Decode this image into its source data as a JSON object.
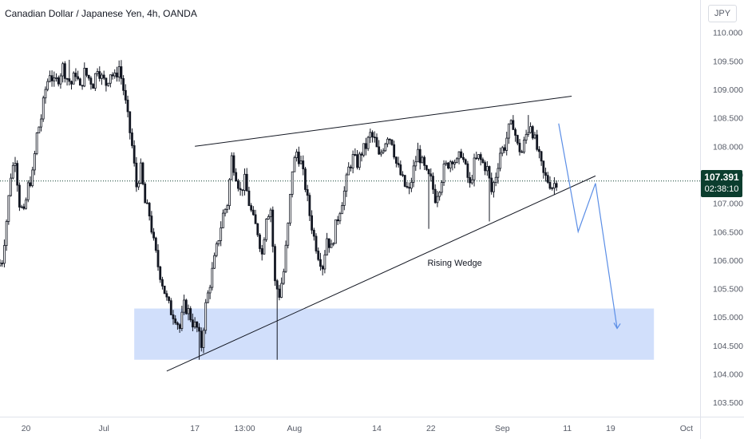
{
  "header": {
    "title": "Canadian Dollar / Japanese Yen, 4h, OANDA",
    "currency": "JPY"
  },
  "price_tag": {
    "price": "107.391",
    "countdown": "02:38:10"
  },
  "colors": {
    "candle": "#131722",
    "zone_fill": "#cfddfb",
    "projection": "#5b8ee6",
    "price_tag": "#0b3d2e",
    "axis_text": "#555a66"
  },
  "chart_data": {
    "type": "candlestick",
    "symbol": "CADJPY",
    "interval": "4h",
    "ylim": [
      103.25,
      110.15
    ],
    "yticks": [
      103.5,
      104.0,
      104.5,
      105.0,
      105.5,
      106.0,
      106.5,
      107.0,
      107.5,
      108.0,
      108.5,
      109.0,
      109.5,
      110.0
    ],
    "ytick_labels": [
      "103.500",
      "104.000",
      "104.500",
      "105.000",
      "105.500",
      "106.000",
      "106.500",
      "107.000",
      "107.500",
      "108.000",
      "108.500",
      "109.000",
      "109.500",
      "110.000"
    ],
    "xlim": [
      0,
      160
    ],
    "xticks": [
      {
        "x": 6,
        "label": "20"
      },
      {
        "x": 24,
        "label": "Jul"
      },
      {
        "x": 45,
        "label": "17"
      },
      {
        "x": 56.5,
        "label": "13:00"
      },
      {
        "x": 68,
        "label": "Aug"
      },
      {
        "x": 87,
        "label": "14"
      },
      {
        "x": 99.5,
        "label": "22"
      },
      {
        "x": 116,
        "label": "Sep"
      },
      {
        "x": 131,
        "label": "11"
      },
      {
        "x": 141,
        "label": "19"
      },
      {
        "x": 158.5,
        "label": "Oct"
      }
    ],
    "price_path": [
      [
        0,
        105.9
      ],
      [
        1,
        106.0
      ],
      [
        2,
        106.7
      ],
      [
        3,
        107.5
      ],
      [
        4,
        107.8
      ],
      [
        5,
        107.0
      ],
      [
        6,
        106.8
      ],
      [
        7,
        107.3
      ],
      [
        8,
        107.5
      ],
      [
        9,
        108.2
      ],
      [
        10,
        108.5
      ],
      [
        11,
        109.0
      ],
      [
        12,
        109.3
      ],
      [
        13,
        109.1
      ],
      [
        14,
        109.2
      ],
      [
        15,
        109.4
      ],
      [
        16,
        109.2
      ],
      [
        17,
        109.1
      ],
      [
        18,
        109.3
      ],
      [
        19,
        109.0
      ],
      [
        20,
        109.3
      ],
      [
        21,
        109.2
      ],
      [
        22,
        109.1
      ],
      [
        23,
        109.4
      ],
      [
        24,
        109.2
      ],
      [
        25,
        109.1
      ],
      [
        26,
        109.3
      ],
      [
        27,
        109.2
      ],
      [
        28,
        109.4
      ],
      [
        29,
        109.0
      ],
      [
        30,
        108.5
      ],
      [
        31,
        108.0
      ],
      [
        32,
        107.3
      ],
      [
        33,
        107.6
      ],
      [
        34,
        107.0
      ],
      [
        35,
        106.8
      ],
      [
        36,
        106.3
      ],
      [
        37,
        105.9
      ],
      [
        38,
        105.6
      ],
      [
        39,
        105.3
      ],
      [
        40,
        105.1
      ],
      [
        41,
        105.0
      ],
      [
        42,
        104.8
      ],
      [
        43,
        105.2
      ],
      [
        44,
        105.1
      ],
      [
        45,
        104.9
      ],
      [
        46,
        104.8
      ],
      [
        47,
        104.5
      ],
      [
        48,
        105.2
      ],
      [
        49,
        105.6
      ],
      [
        50,
        106.0
      ],
      [
        51,
        106.4
      ],
      [
        52,
        106.8
      ],
      [
        53,
        107.0
      ],
      [
        54,
        107.8
      ],
      [
        55,
        107.5
      ],
      [
        56,
        107.2
      ],
      [
        57,
        107.4
      ],
      [
        58,
        107.0
      ],
      [
        59,
        106.7
      ],
      [
        60,
        106.5
      ],
      [
        61,
        106.1
      ],
      [
        62,
        106.8
      ],
      [
        63,
        106.9
      ],
      [
        64,
        105.6
      ],
      [
        65,
        105.4
      ],
      [
        66,
        105.8
      ],
      [
        67,
        106.6
      ],
      [
        68,
        107.6
      ],
      [
        69,
        107.9
      ],
      [
        70,
        107.7
      ],
      [
        71,
        107.3
      ],
      [
        72,
        106.8
      ],
      [
        73,
        106.4
      ],
      [
        74,
        106.1
      ],
      [
        75,
        105.9
      ],
      [
        76,
        106.4
      ],
      [
        77,
        106.2
      ],
      [
        78,
        106.6
      ],
      [
        79,
        106.9
      ],
      [
        80,
        107.2
      ],
      [
        81,
        107.6
      ],
      [
        82,
        107.8
      ],
      [
        83,
        107.7
      ],
      [
        84,
        107.9
      ],
      [
        85,
        108.0
      ],
      [
        86,
        108.2
      ],
      [
        87,
        108.1
      ],
      [
        88,
        107.8
      ],
      [
        89,
        108.0
      ],
      [
        90,
        108.2
      ],
      [
        91,
        108.1
      ],
      [
        92,
        107.7
      ],
      [
        93,
        107.5
      ],
      [
        94,
        107.3
      ],
      [
        95,
        107.2
      ],
      [
        96,
        107.6
      ],
      [
        97,
        107.9
      ],
      [
        98,
        107.7
      ],
      [
        99,
        107.5
      ],
      [
        100,
        107.4
      ],
      [
        101,
        107.1
      ],
      [
        102,
        107.3
      ],
      [
        103,
        107.6
      ],
      [
        104,
        107.7
      ],
      [
        105,
        107.8
      ],
      [
        106,
        107.7
      ],
      [
        107,
        107.9
      ],
      [
        108,
        107.6
      ],
      [
        109,
        107.3
      ],
      [
        110,
        107.7
      ],
      [
        111,
        107.8
      ],
      [
        112,
        107.7
      ],
      [
        113,
        107.6
      ],
      [
        114,
        107.2
      ],
      [
        115,
        107.5
      ],
      [
        116,
        107.9
      ],
      [
        117,
        108.0
      ],
      [
        118,
        108.3
      ],
      [
        119,
        108.4
      ],
      [
        120,
        108.0
      ],
      [
        121,
        107.9
      ],
      [
        122,
        108.2
      ],
      [
        123,
        108.4
      ],
      [
        124,
        108.1
      ],
      [
        125,
        107.8
      ],
      [
        126,
        107.5
      ],
      [
        127,
        107.4
      ],
      [
        128,
        107.3
      ],
      [
        129,
        107.39
      ]
    ],
    "wick_extremes": [
      {
        "x": 46,
        "low": 104.25
      },
      {
        "x": 64,
        "low": 104.25
      },
      {
        "x": 99,
        "low": 106.55
      },
      {
        "x": 113,
        "low": 106.68
      },
      {
        "x": 16,
        "high": 109.52
      },
      {
        "x": 122,
        "high": 108.55
      }
    ],
    "drawings": {
      "upper_trendline": {
        "from": [
          45,
          108.0
        ],
        "to": [
          132,
          108.88
        ]
      },
      "lower_trendline": {
        "from": [
          38.5,
          104.05
        ],
        "to": [
          137.5,
          107.48
        ]
      },
      "demand_zone": {
        "x_from": 31,
        "x_to": 151,
        "y_from": 104.25,
        "y_to": 105.15
      },
      "projection_path": [
        [
          129,
          108.4
        ],
        [
          133.5,
          106.5
        ],
        [
          137.5,
          107.35
        ],
        [
          142.5,
          104.8
        ]
      ],
      "annotation": {
        "text": "Rising Wedge",
        "x": 105,
        "y": 105.9
      },
      "current_price_line": 107.391
    }
  }
}
